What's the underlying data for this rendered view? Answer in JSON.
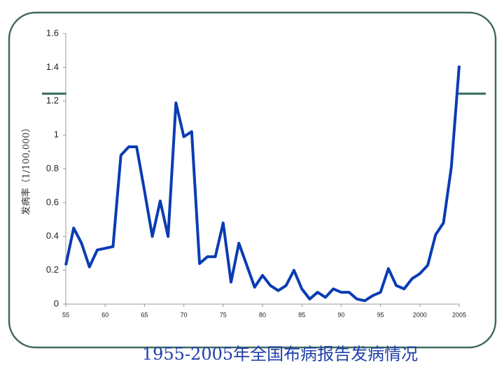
{
  "chart_data": {
    "type": "line",
    "title": "1955-2005年全国布病报告发病情况",
    "ylabel": "发病率（1/100,000）",
    "x": [
      1955,
      1956,
      1957,
      1958,
      1959,
      1960,
      1961,
      1962,
      1963,
      1964,
      1965,
      1966,
      1967,
      1968,
      1969,
      1970,
      1971,
      1972,
      1973,
      1974,
      1975,
      1976,
      1977,
      1978,
      1979,
      1980,
      1981,
      1982,
      1983,
      1984,
      1985,
      1986,
      1987,
      1988,
      1989,
      1990,
      1991,
      1992,
      1993,
      1994,
      1995,
      1996,
      1997,
      1998,
      1999,
      2000,
      2001,
      2002,
      2003,
      2004,
      2005
    ],
    "series": [
      {
        "color": "#0a3cb4",
        "values": [
          0.23,
          0.45,
          0.36,
          0.22,
          0.32,
          0.33,
          0.34,
          0.88,
          0.93,
          0.93,
          0.67,
          0.4,
          0.61,
          0.4,
          1.19,
          0.99,
          1.02,
          0.24,
          0.28,
          0.28,
          0.48,
          0.13,
          0.36,
          0.23,
          0.1,
          0.17,
          0.11,
          0.08,
          0.11,
          0.2,
          0.09,
          0.03,
          0.07,
          0.04,
          0.09,
          0.07,
          0.07,
          0.03,
          0.02,
          0.05,
          0.07,
          0.21,
          0.11,
          0.09,
          0.15,
          0.18,
          0.23,
          0.41,
          0.48,
          0.81,
          1.41
        ]
      }
    ],
    "xlim": [
      1955,
      2005
    ],
    "xticks": [
      {
        "value": 1955,
        "label": "55"
      },
      {
        "value": 1960,
        "label": "60"
      },
      {
        "value": 1965,
        "label": "65"
      },
      {
        "value": 1970,
        "label": "70"
      },
      {
        "value": 1975,
        "label": "75"
      },
      {
        "value": 1980,
        "label": "80"
      },
      {
        "value": 1985,
        "label": "85"
      },
      {
        "value": 1990,
        "label": "90"
      },
      {
        "value": 1995,
        "label": "95"
      },
      2000,
      2005
    ],
    "ylim": [
      0,
      1.6
    ],
    "yticks": [
      0,
      0.2,
      0.4,
      0.6,
      0.8,
      1,
      1.2,
      1.4,
      1.6
    ]
  }
}
